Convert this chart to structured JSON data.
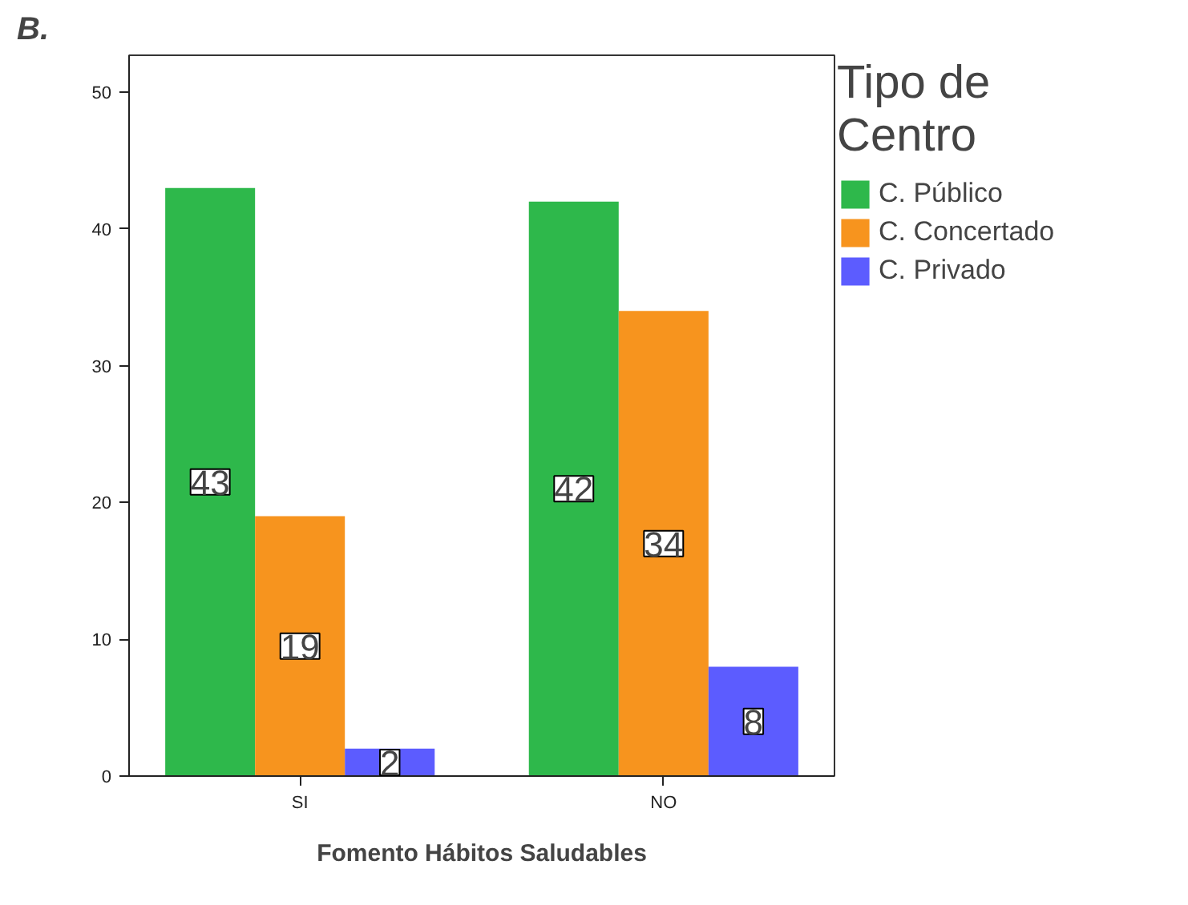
{
  "chart_data": {
    "type": "bar",
    "title": "B.",
    "xlabel": "Fomento Hábitos Saludables",
    "legend_title": "Tipo de Centro",
    "categories": [
      "SI",
      "NO"
    ],
    "series": [
      {
        "name": "C. Público",
        "color": "#2eb84b",
        "values": [
          43,
          42
        ]
      },
      {
        "name": "C. Concertado",
        "color": "#f7941e",
        "values": [
          19,
          34
        ]
      },
      {
        "name": "C. Privado",
        "color": "#5c5cff",
        "values": [
          2,
          8
        ]
      }
    ],
    "ylim": [
      0,
      52.7
    ],
    "yticks": [
      0,
      10,
      20,
      30,
      40,
      50
    ],
    "grid": false,
    "legend": "right",
    "data_labels": true
  }
}
